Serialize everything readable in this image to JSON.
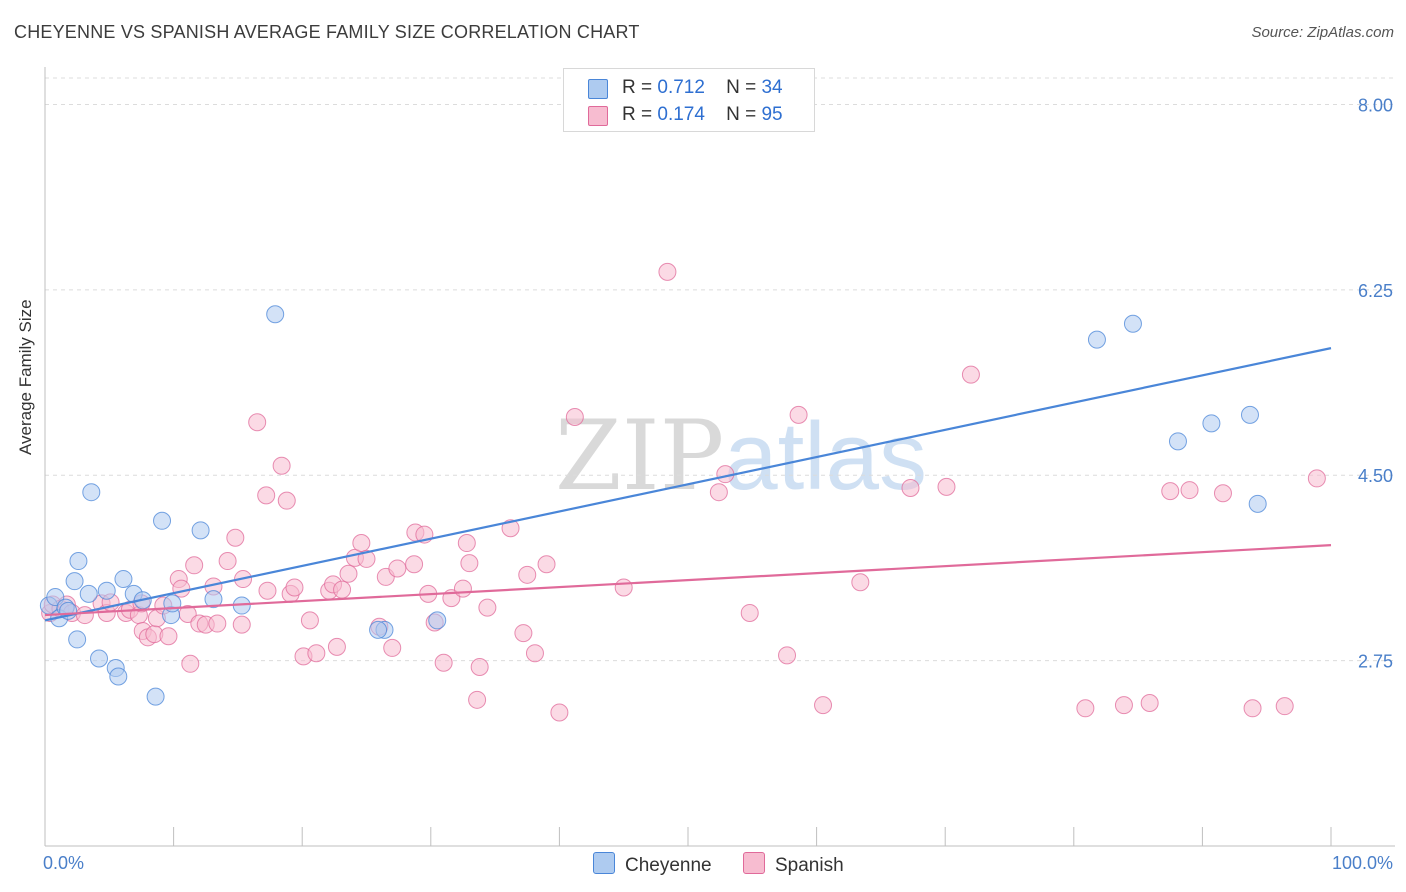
{
  "title": "CHEYENNE VS SPANISH AVERAGE FAMILY SIZE CORRELATION CHART",
  "source": "Source: ZipAtlas.com",
  "watermark": {
    "zip": "ZIP",
    "atlas": "atlas"
  },
  "legend": {
    "rows": [
      {
        "name": "Cheyenne",
        "r_label": "R =",
        "r": "0.712",
        "n_label": "N =",
        "n": "34",
        "color": "#aecbf0"
      },
      {
        "name": "Spanish",
        "r_label": "R =",
        "r": "0.174",
        "n_label": "N =",
        "n": "95",
        "color": "#f7bcd0"
      }
    ]
  },
  "chart_data": {
    "type": "scatter",
    "title": "CHEYENNE VS SPANISH AVERAGE FAMILY SIZE CORRELATION CHART",
    "xlabel": "",
    "ylabel": "Average Family Size",
    "xlim": [
      0,
      100
    ],
    "ylim": [
      1.0,
      8.25
    ],
    "x_tick_labels": [
      "0.0%",
      "100.0%"
    ],
    "y_ticks": [
      2.75,
      4.5,
      6.25,
      8.0
    ],
    "y_tick_labels": [
      "2.75",
      "4.50",
      "6.25",
      "8.00"
    ],
    "grid": true,
    "series": [
      {
        "name": "Cheyenne",
        "color": "#4a86d8",
        "fill": "#aecbf0",
        "trend": {
          "x": [
            0,
            100
          ],
          "y": [
            3.13,
            5.7
          ]
        },
        "points": [
          [
            0.3,
            3.27
          ],
          [
            0.8,
            3.35
          ],
          [
            1.1,
            3.15
          ],
          [
            1.6,
            3.25
          ],
          [
            1.8,
            3.22
          ],
          [
            2.3,
            3.5
          ],
          [
            2.5,
            2.95
          ],
          [
            2.6,
            3.69
          ],
          [
            3.4,
            3.38
          ],
          [
            3.6,
            4.34
          ],
          [
            4.2,
            2.77
          ],
          [
            4.8,
            3.41
          ],
          [
            5.5,
            2.68
          ],
          [
            5.7,
            2.6
          ],
          [
            6.1,
            3.52
          ],
          [
            6.9,
            3.38
          ],
          [
            7.6,
            3.32
          ],
          [
            8.6,
            2.41
          ],
          [
            9.1,
            4.07
          ],
          [
            9.8,
            3.18
          ],
          [
            9.9,
            3.29
          ],
          [
            12.1,
            3.98
          ],
          [
            13.1,
            3.33
          ],
          [
            15.3,
            3.27
          ],
          [
            17.9,
            6.02
          ],
          [
            26.4,
            3.04
          ],
          [
            30.5,
            3.13
          ],
          [
            84.6,
            5.93
          ],
          [
            88.1,
            4.82
          ],
          [
            93.7,
            5.07
          ],
          [
            90.7,
            4.99
          ],
          [
            94.3,
            4.23
          ],
          [
            81.8,
            5.78
          ],
          [
            25.9,
            3.04
          ]
        ]
      },
      {
        "name": "Spanish",
        "color": "#e06a9a",
        "fill": "#f7bcd0",
        "trend": {
          "x": [
            0,
            100
          ],
          "y": [
            3.18,
            3.84
          ]
        },
        "points": [
          [
            0.4,
            3.2
          ],
          [
            0.6,
            3.28
          ],
          [
            1.2,
            3.24
          ],
          [
            1.7,
            3.28
          ],
          [
            2.1,
            3.2
          ],
          [
            3.1,
            3.18
          ],
          [
            4.4,
            3.29
          ],
          [
            4.8,
            3.2
          ],
          [
            5.1,
            3.3
          ],
          [
            6.3,
            3.2
          ],
          [
            6.6,
            3.23
          ],
          [
            7.3,
            3.18
          ],
          [
            7.5,
            3.29
          ],
          [
            7.6,
            3.03
          ],
          [
            8.0,
            2.97
          ],
          [
            8.5,
            3.0
          ],
          [
            8.7,
            3.15
          ],
          [
            9.2,
            3.27
          ],
          [
            9.6,
            2.98
          ],
          [
            10.4,
            3.52
          ],
          [
            10.6,
            3.43
          ],
          [
            11.1,
            3.19
          ],
          [
            11.3,
            2.72
          ],
          [
            11.6,
            3.65
          ],
          [
            12.0,
            3.1
          ],
          [
            12.5,
            3.09
          ],
          [
            13.1,
            3.45
          ],
          [
            13.4,
            3.1
          ],
          [
            14.2,
            3.69
          ],
          [
            14.8,
            3.91
          ],
          [
            15.3,
            3.09
          ],
          [
            15.4,
            3.52
          ],
          [
            16.5,
            5.0
          ],
          [
            17.2,
            4.31
          ],
          [
            17.3,
            3.41
          ],
          [
            18.4,
            4.59
          ],
          [
            18.8,
            4.26
          ],
          [
            19.1,
            3.38
          ],
          [
            19.4,
            3.44
          ],
          [
            20.1,
            2.79
          ],
          [
            20.6,
            3.13
          ],
          [
            21.1,
            2.82
          ],
          [
            22.1,
            3.41
          ],
          [
            22.4,
            3.47
          ],
          [
            22.7,
            2.88
          ],
          [
            23.1,
            3.42
          ],
          [
            23.6,
            3.57
          ],
          [
            24.1,
            3.72
          ],
          [
            24.6,
            3.86
          ],
          [
            25.0,
            3.71
          ],
          [
            26.0,
            3.07
          ],
          [
            26.5,
            3.54
          ],
          [
            27.0,
            2.87
          ],
          [
            27.4,
            3.62
          ],
          [
            28.7,
            3.66
          ],
          [
            28.8,
            3.96
          ],
          [
            29.5,
            3.94
          ],
          [
            29.8,
            3.38
          ],
          [
            30.3,
            3.11
          ],
          [
            31.0,
            2.73
          ],
          [
            31.6,
            3.34
          ],
          [
            32.5,
            3.43
          ],
          [
            32.8,
            3.86
          ],
          [
            33.0,
            3.67
          ],
          [
            33.6,
            2.38
          ],
          [
            33.8,
            2.69
          ],
          [
            34.4,
            3.25
          ],
          [
            36.2,
            4.0
          ],
          [
            37.2,
            3.01
          ],
          [
            37.5,
            3.56
          ],
          [
            38.1,
            2.82
          ],
          [
            39.0,
            3.66
          ],
          [
            40.0,
            2.26
          ],
          [
            41.2,
            5.05
          ],
          [
            45.0,
            3.44
          ],
          [
            48.4,
            6.42
          ],
          [
            52.4,
            4.34
          ],
          [
            52.9,
            4.51
          ],
          [
            54.8,
            3.2
          ],
          [
            57.7,
            2.8
          ],
          [
            58.6,
            5.07
          ],
          [
            60.5,
            2.33
          ],
          [
            63.4,
            3.49
          ],
          [
            67.3,
            4.38
          ],
          [
            70.1,
            4.39
          ],
          [
            72.0,
            5.45
          ],
          [
            80.9,
            2.3
          ],
          [
            83.9,
            2.33
          ],
          [
            85.9,
            2.35
          ],
          [
            87.5,
            4.35
          ],
          [
            89.0,
            4.36
          ],
          [
            91.6,
            4.33
          ],
          [
            93.9,
            2.3
          ],
          [
            96.4,
            2.32
          ],
          [
            98.9,
            4.47
          ]
        ]
      }
    ]
  },
  "bottom_legend": [
    "Cheyenne",
    "Spanish"
  ]
}
